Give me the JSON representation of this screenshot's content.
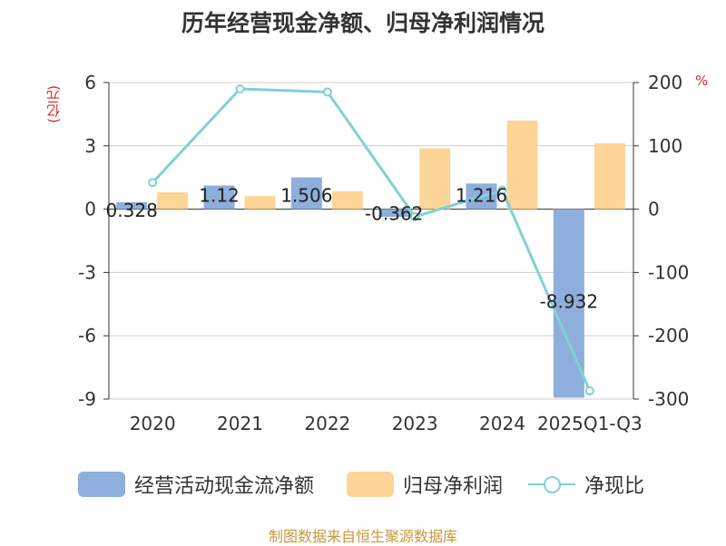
{
  "title": "历年经营现金净额、归母净利润情况",
  "units": {
    "left": "(亿元)",
    "right": "%"
  },
  "colors": {
    "cash": "#8eaedc",
    "profit": "#fdd597",
    "ratio": "#7fd2d6"
  },
  "legend": [
    {
      "label": "经营活动现金流净额"
    },
    {
      "label": "归母净利润"
    },
    {
      "label": "净现比"
    }
  ],
  "source": "制图数据来自恒生聚源数据库",
  "chart_data": {
    "type": "bar",
    "title": "历年经营现金净额、归母净利润情况",
    "categories": [
      "2020",
      "2021",
      "2022",
      "2023",
      "2024",
      "2025Q1-Q3"
    ],
    "series": [
      {
        "name": "经营活动现金流净额",
        "type": "bar",
        "axis": "left",
        "values": [
          0.328,
          1.12,
          1.506,
          -0.362,
          1.216,
          -8.932
        ],
        "labels": [
          "0.328",
          "1.12",
          "1.506",
          "-0.362",
          "1.216",
          "-8.932"
        ]
      },
      {
        "name": "归母净利润",
        "type": "bar",
        "axis": "left",
        "values": [
          0.8,
          0.62,
          0.85,
          2.88,
          4.2,
          3.12
        ]
      },
      {
        "name": "净现比",
        "type": "line",
        "axis": "right",
        "values": [
          42,
          190,
          185,
          -12,
          30,
          -287
        ]
      }
    ],
    "left_axis": {
      "label": "(亿元)",
      "min": -9,
      "max": 6,
      "ticks": [
        6,
        3,
        0,
        -3,
        -6,
        -9
      ]
    },
    "right_axis": {
      "label": "%",
      "min": -300,
      "max": 200,
      "ticks": [
        200,
        100,
        0,
        -100,
        -200,
        -300
      ]
    },
    "grid": true,
    "legend_position": "bottom"
  }
}
